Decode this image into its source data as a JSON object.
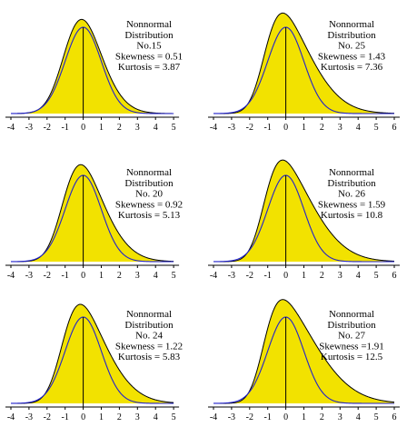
{
  "chart_data": [
    {
      "type": "area",
      "title_lines": [
        "Nonnormal",
        "Distribution",
        "No.15"
      ],
      "stats": {
        "skewness_label": "Skewness = 0.51",
        "kurtosis_label": "Kurtosis = 3.87"
      },
      "skewness": 0.51,
      "kurtosis": 3.87,
      "xlim": [
        -4,
        5
      ],
      "ticks": [
        "-4",
        "-3",
        "-2",
        "-1",
        "0",
        "1",
        "2",
        "3",
        "4",
        "5"
      ],
      "series": [
        {
          "role": "nonnormal density",
          "color": "#f2e200"
        },
        {
          "role": "normal density",
          "color": "#2222cc"
        }
      ],
      "grid": false
    },
    {
      "type": "area",
      "title_lines": [
        "Nonnormal",
        "Distribution",
        "No. 25"
      ],
      "stats": {
        "skewness_label": "Skewness = 1.43",
        "kurtosis_label": "Kurtosis = 7.36"
      },
      "skewness": 1.43,
      "kurtosis": 7.36,
      "xlim": [
        -4,
        6
      ],
      "ticks": [
        "-4",
        "-3",
        "-2",
        "-1",
        "0",
        "1",
        "2",
        "3",
        "4",
        "5",
        "6"
      ],
      "series": [
        {
          "role": "nonnormal density",
          "color": "#f2e200"
        },
        {
          "role": "normal density",
          "color": "#2222cc"
        }
      ],
      "grid": false
    },
    {
      "type": "area",
      "title_lines": [
        "Nonnormal",
        "Distribution",
        "No. 20"
      ],
      "stats": {
        "skewness_label": "Skewness = 0.92",
        "kurtosis_label": "Kurtosis = 5.13"
      },
      "skewness": 0.92,
      "kurtosis": 5.13,
      "xlim": [
        -4,
        5
      ],
      "ticks": [
        "-4",
        "-3",
        "-2",
        "-1",
        "0",
        "1",
        "2",
        "3",
        "4",
        "5"
      ],
      "series": [
        {
          "role": "nonnormal density",
          "color": "#f2e200"
        },
        {
          "role": "normal density",
          "color": "#2222cc"
        }
      ],
      "grid": false
    },
    {
      "type": "area",
      "title_lines": [
        "Nonnormal",
        "Distribution",
        "No. 26"
      ],
      "stats": {
        "skewness_label": "Skewness = 1.59",
        "kurtosis_label": "Kurtosis = 10.8"
      },
      "skewness": 1.59,
      "kurtosis": 10.8,
      "xlim": [
        -4,
        6
      ],
      "ticks": [
        "-4",
        "-3",
        "-2",
        "-1",
        "0",
        "1",
        "2",
        "3",
        "4",
        "5",
        "6"
      ],
      "series": [
        {
          "role": "nonnormal density",
          "color": "#f2e200"
        },
        {
          "role": "normal density",
          "color": "#2222cc"
        }
      ],
      "grid": false
    },
    {
      "type": "area",
      "title_lines": [
        "Nonnormal",
        "Distribution",
        "No. 24"
      ],
      "stats": {
        "skewness_label": "Skewness = 1.22",
        "kurtosis_label": "Kurtosis = 5.83"
      },
      "skewness": 1.22,
      "kurtosis": 5.83,
      "xlim": [
        -4,
        5
      ],
      "ticks": [
        "-4",
        "-3",
        "-2",
        "-1",
        "0",
        "1",
        "2",
        "3",
        "4",
        "5"
      ],
      "series": [
        {
          "role": "nonnormal density",
          "color": "#f2e200"
        },
        {
          "role": "normal density",
          "color": "#2222cc"
        }
      ],
      "grid": false
    },
    {
      "type": "area",
      "title_lines": [
        "Nonnormal",
        "Distribution",
        "No. 27"
      ],
      "stats": {
        "skewness_label": "Skewness =1.91",
        "kurtosis_label": "Kurtosis = 12.5"
      },
      "skewness": 1.91,
      "kurtosis": 12.5,
      "xlim": [
        -4,
        6
      ],
      "ticks": [
        "-4",
        "-3",
        "-2",
        "-1",
        "0",
        "1",
        "2",
        "3",
        "4",
        "5",
        "6"
      ],
      "series": [
        {
          "role": "nonnormal density",
          "color": "#f2e200"
        },
        {
          "role": "normal density",
          "color": "#2222cc"
        }
      ],
      "grid": false
    }
  ]
}
